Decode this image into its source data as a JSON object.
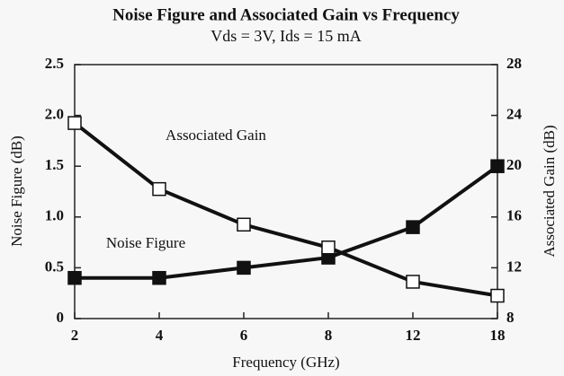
{
  "chart_data": {
    "type": "line",
    "title": "Noise Figure and Associated Gain vs Frequency",
    "subtitle": "Vds = 3V, Ids = 15 mA",
    "xlabel": "Frequency (GHz)",
    "ylabel": "Noise Figure (dB)",
    "y2label": "Associated Gain (dB)",
    "categories": [
      "2",
      "4",
      "6",
      "8",
      "12",
      "18"
    ],
    "series": [
      {
        "name": "Noise Figure",
        "color": "#111111",
        "marker_fill": "#111111",
        "values": [
          0.4,
          0.4,
          0.5,
          0.6,
          0.9,
          1.5
        ]
      },
      {
        "name": "Associated Gain",
        "color": "#111111",
        "marker_fill": "#ffffff",
        "axis": "y2",
        "values": [
          23.4,
          18.2,
          15.4,
          13.6,
          10.9,
          9.8
        ]
      }
    ],
    "ylim": [
      0,
      2.5
    ],
    "yticks": [
      0,
      0.5,
      {
        "value": 1,
        "label": "1.0"
      },
      1.5,
      {
        "value": 2,
        "label": "2.0"
      },
      2.5
    ],
    "y2lim": [
      8,
      28
    ],
    "y2ticks": [
      8,
      12,
      16,
      20,
      24,
      28
    ]
  }
}
